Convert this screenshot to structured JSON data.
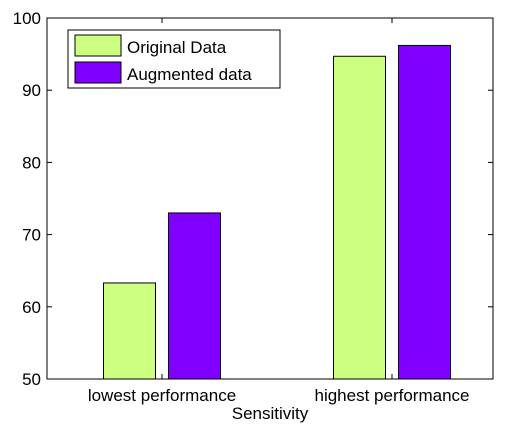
{
  "chart_data": {
    "type": "bar",
    "categories": [
      "lowest performance",
      "highest performance"
    ],
    "series": [
      {
        "name": "Original Data",
        "values": [
          63.3,
          94.7
        ],
        "color": "#ccff80"
      },
      {
        "name": "Augmented data",
        "values": [
          73.0,
          96.2
        ],
        "color": "#8000ff"
      }
    ],
    "xlabel": "Sensitivity",
    "ylabel": "",
    "ylim": [
      50,
      100
    ],
    "yticks": [
      50,
      60,
      70,
      80,
      90,
      100
    ],
    "legend_position": "top-left",
    "grid": false
  }
}
